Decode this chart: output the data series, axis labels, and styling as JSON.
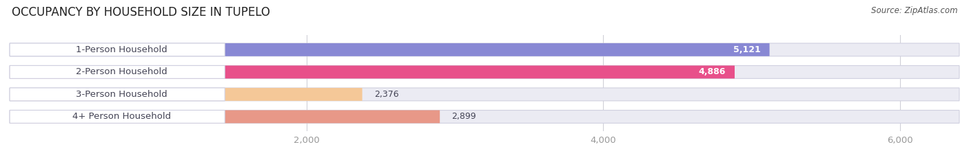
{
  "title": "OCCUPANCY BY HOUSEHOLD SIZE IN TUPELO",
  "source": "Source: ZipAtlas.com",
  "categories": [
    "1-Person Household",
    "2-Person Household",
    "3-Person Household",
    "4+ Person Household"
  ],
  "values": [
    5121,
    4886,
    2376,
    2899
  ],
  "bar_colors": [
    "#8888d4",
    "#e8508a",
    "#f5c898",
    "#e89888"
  ],
  "bar_bg_color": "#ebebf3",
  "label_pill_color": "#ffffff",
  "value_labels": [
    "5,121",
    "4,886",
    "2,376",
    "2,899"
  ],
  "xlim_max": 6400,
  "xticks": [
    2000,
    4000,
    6000
  ],
  "xticklabels": [
    "2,000",
    "4,000",
    "6,000"
  ],
  "title_fontsize": 12,
  "source_fontsize": 8.5,
  "label_fontsize": 9.5,
  "value_fontsize": 9,
  "bar_height": 0.58,
  "background_color": "#ffffff",
  "text_color": "#444455",
  "tick_color": "#999999"
}
